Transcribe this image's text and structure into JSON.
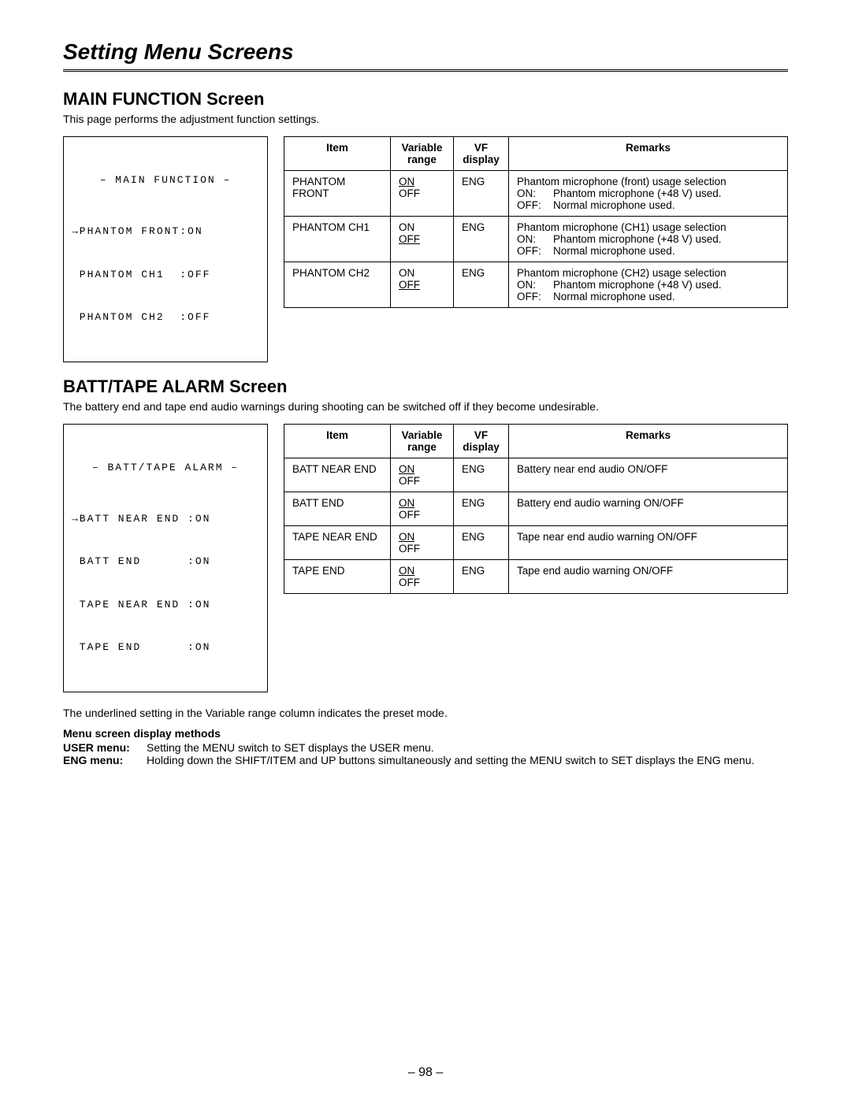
{
  "page": {
    "title": "Setting Menu Screens",
    "pageNumber": "– 98 –"
  },
  "section1": {
    "heading": "MAIN FUNCTION Screen",
    "desc": "This page performs the adjustment function settings.",
    "screen": {
      "title": "– MAIN FUNCTION –",
      "lines": [
        "→PHANTOM FRONT:ON",
        " PHANTOM CH1  :OFF",
        " PHANTOM CH2  :OFF"
      ]
    },
    "headers": {
      "item": "Item",
      "range": "Variable range",
      "vf": "VF display",
      "remarks": "Remarks"
    },
    "rows": [
      {
        "item": "PHANTOM FRONT",
        "range_default": "ON",
        "range_other": "OFF",
        "vf": "ENG",
        "remarks_lead": "Phantom microphone (front) usage selection",
        "remarks_kv": [
          {
            "k": "ON:",
            "v": "Phantom microphone (+48 V) used."
          },
          {
            "k": "OFF:",
            "v": "Normal microphone used."
          }
        ]
      },
      {
        "item": "PHANTOM CH1",
        "range_default": "OFF",
        "range_other": "ON",
        "range_first": "ON",
        "vf": "ENG",
        "remarks_lead": "Phantom microphone (CH1) usage selection",
        "remarks_kv": [
          {
            "k": "ON:",
            "v": "Phantom microphone (+48 V) used."
          },
          {
            "k": "OFF:",
            "v": "Normal microphone used."
          }
        ]
      },
      {
        "item": "PHANTOM CH2",
        "range_default": "OFF",
        "range_other": "ON",
        "range_first": "ON",
        "vf": "ENG",
        "remarks_lead": "Phantom microphone (CH2) usage selection",
        "remarks_kv": [
          {
            "k": "ON:",
            "v": "Phantom microphone (+48 V) used."
          },
          {
            "k": "OFF:",
            "v": "Normal microphone used."
          }
        ]
      }
    ]
  },
  "section2": {
    "heading": "BATT/TAPE ALARM Screen",
    "desc": "The battery end and tape end audio warnings during shooting can be switched off if they become undesirable.",
    "screen": {
      "title": "– BATT/TAPE ALARM –",
      "lines": [
        "→BATT NEAR END :ON",
        " BATT END      :ON",
        " TAPE NEAR END :ON",
        " TAPE END      :ON"
      ]
    },
    "headers": {
      "item": "Item",
      "range": "Variable range",
      "vf": "VF display",
      "remarks": "Remarks"
    },
    "rows": [
      {
        "item": "BATT NEAR END",
        "range_default": "ON",
        "range_other": "OFF",
        "vf": "ENG",
        "remarks": "Battery near end audio ON/OFF"
      },
      {
        "item": "BATT END",
        "range_default": "ON",
        "range_other": "OFF",
        "vf": "ENG",
        "remarks": "Battery end audio warning ON/OFF"
      },
      {
        "item": "TAPE NEAR END",
        "range_default": "ON",
        "range_other": "OFF",
        "vf": "ENG",
        "remarks": "Tape near end audio warning ON/OFF"
      },
      {
        "item": "TAPE END",
        "range_default": "ON",
        "range_other": "OFF",
        "vf": "ENG",
        "remarks": "Tape end audio warning ON/OFF"
      }
    ]
  },
  "footnote": "The underlined setting in the Variable range column indicates the preset mode.",
  "methods": {
    "title": "Menu screen display methods",
    "lines": [
      {
        "k": "USER menu:",
        "v": "Setting the MENU switch to SET displays the USER menu."
      },
      {
        "k": "ENG menu:",
        "v": "Holding down the SHIFT/ITEM and UP buttons simultaneously and setting the MENU switch to SET displays the ENG menu."
      }
    ]
  }
}
